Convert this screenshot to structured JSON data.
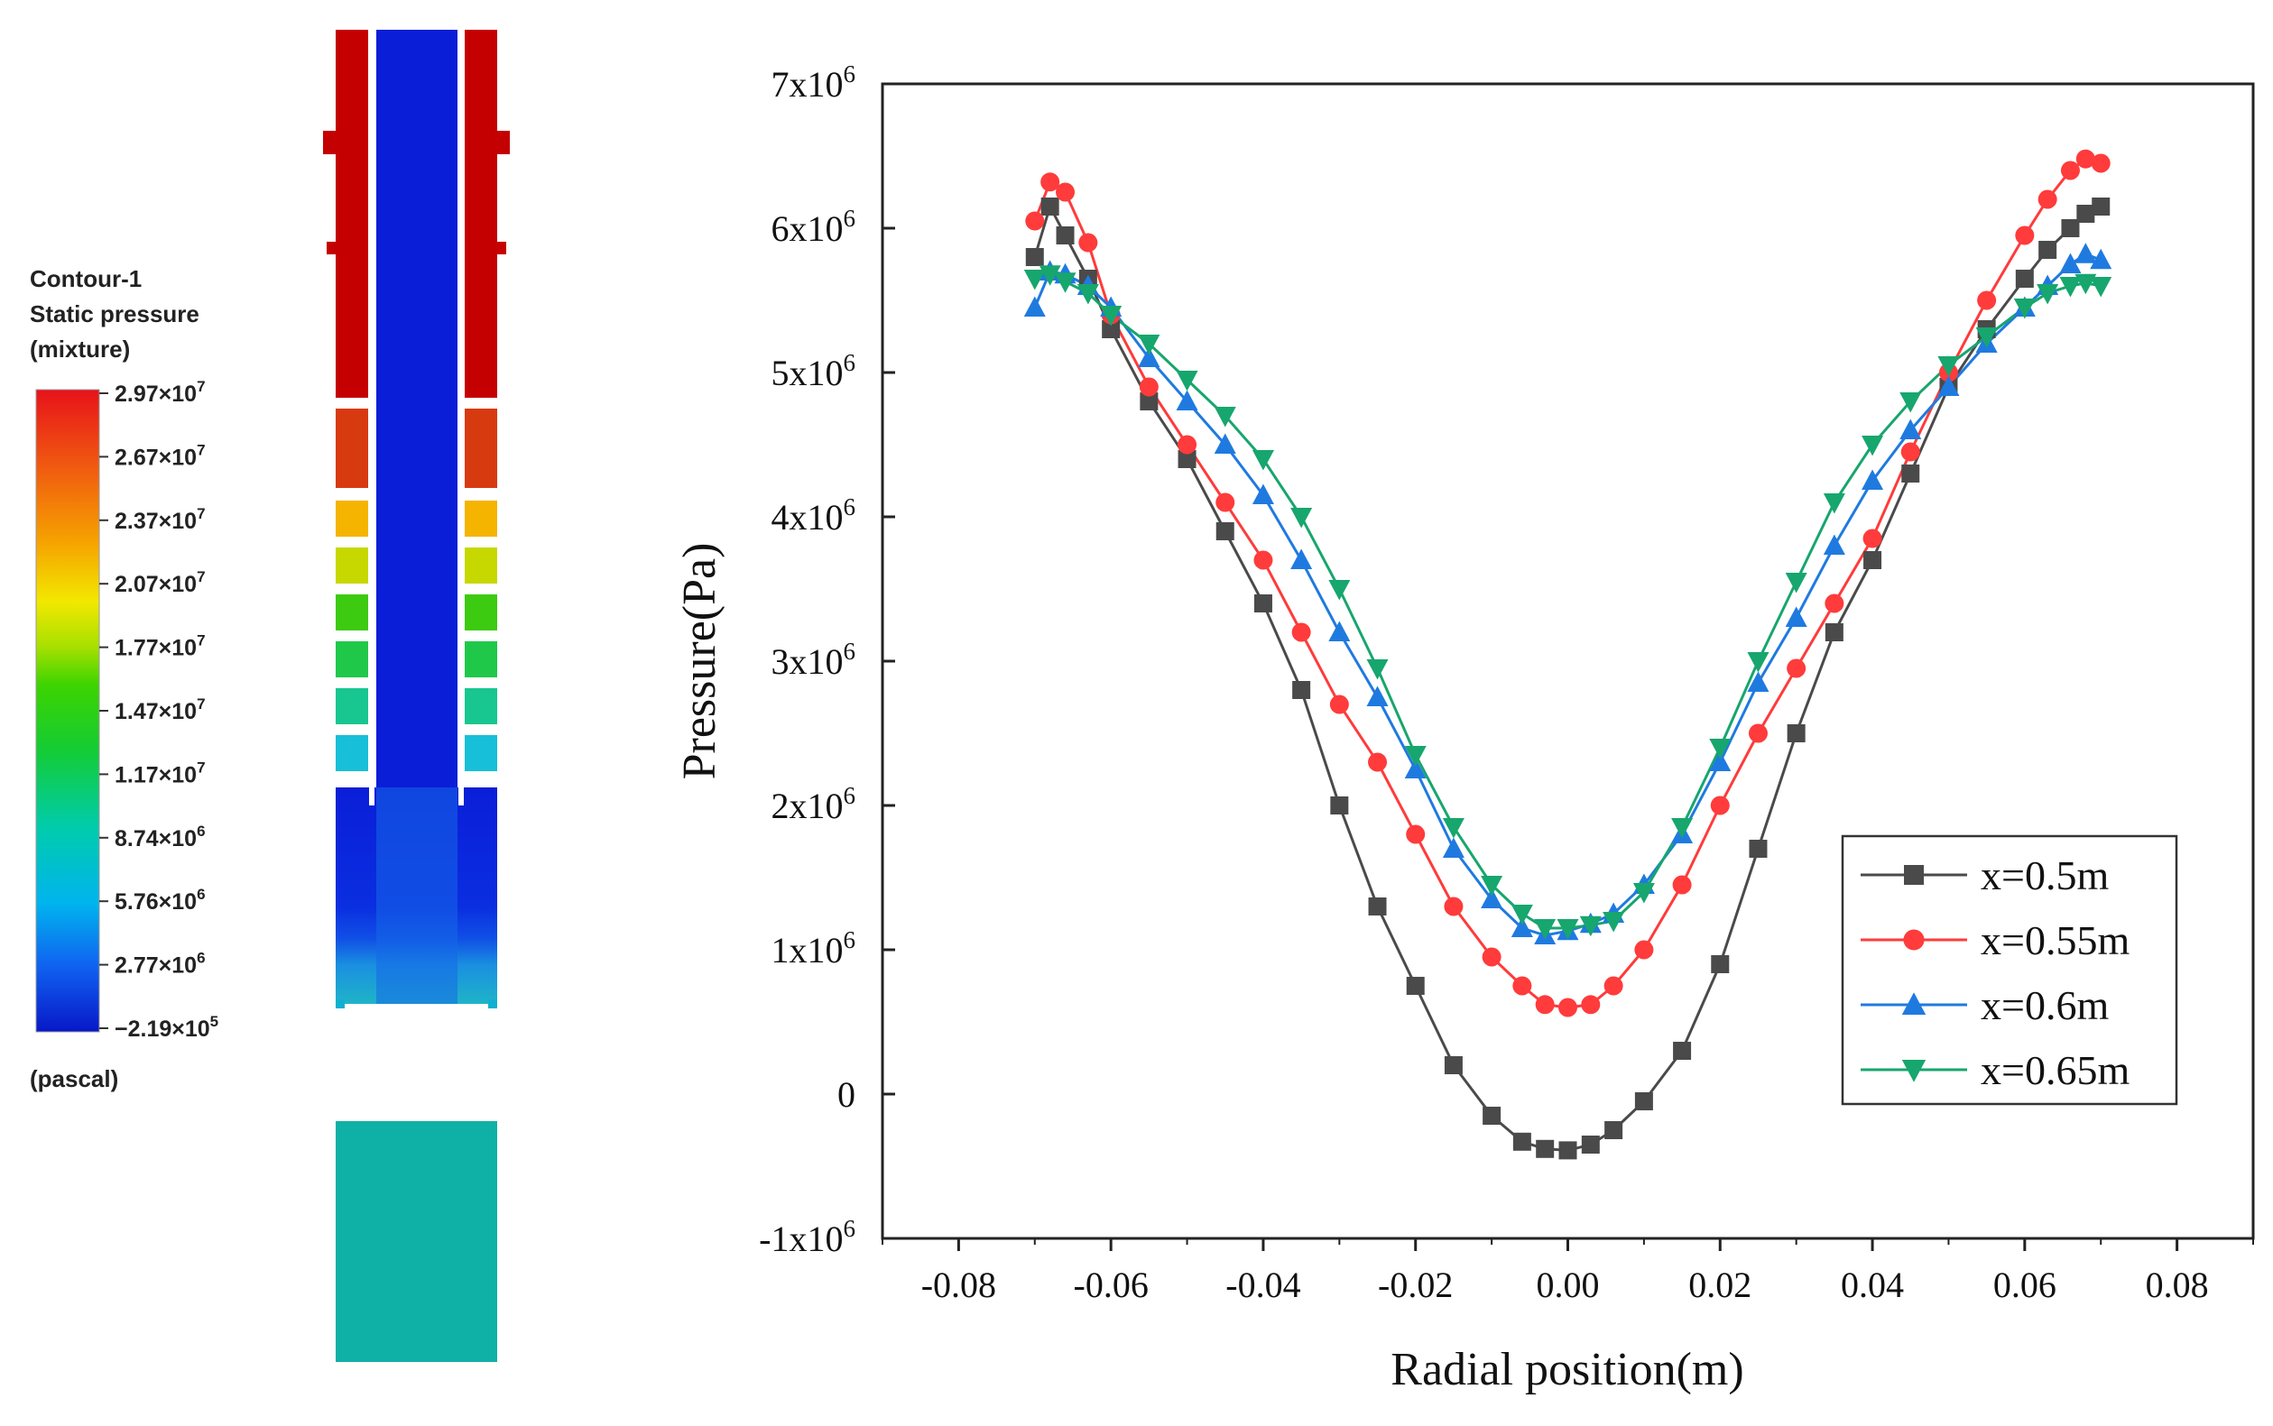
{
  "colors": {
    "x05": "#4a4a4a",
    "x055": "#ff3b3b",
    "x06": "#1f7ae0",
    "x065": "#17a66e",
    "contour_red": "#c00000",
    "contour_blue": "#0b1fd8",
    "contour_teal": "#0fb0a6"
  },
  "colormap": {
    "title_line1": "Contour-1",
    "title_line2": "Static pressure",
    "title_line3": "(mixture)",
    "unit": "(pascal)",
    "ticks": [
      {
        "mantissa": "2.97×10",
        "exp": "7"
      },
      {
        "mantissa": "2.67×10",
        "exp": "7"
      },
      {
        "mantissa": "2.37×10",
        "exp": "7"
      },
      {
        "mantissa": "2.07×10",
        "exp": "7"
      },
      {
        "mantissa": "1.77×10",
        "exp": "7"
      },
      {
        "mantissa": "1.47×10",
        "exp": "7"
      },
      {
        "mantissa": "1.17×10",
        "exp": "7"
      },
      {
        "mantissa": "8.74×10",
        "exp": "6"
      },
      {
        "mantissa": "5.76×10",
        "exp": "6"
      },
      {
        "mantissa": "2.77×10",
        "exp": "6"
      },
      {
        "mantissa": "−2.19×10",
        "exp": "5"
      }
    ]
  },
  "chart_data": {
    "type": "line",
    "title": "",
    "xlabel": "Radial position(m)",
    "ylabel": "Pressure(Pa)",
    "xlim": [
      -0.09,
      0.09
    ],
    "ylim": [
      -1000000,
      7000000
    ],
    "xticks": [
      -0.08,
      -0.06,
      -0.04,
      -0.02,
      0.0,
      0.02,
      0.04,
      0.06,
      0.08
    ],
    "xtick_labels": [
      "-0.08",
      "-0.06",
      "-0.04",
      "-0.02",
      "0.00",
      "0.02",
      "0.04",
      "0.06",
      "0.08"
    ],
    "yticks": [
      {
        "value": -1000000,
        "mantissa": "-1x10",
        "exp": "6"
      },
      {
        "value": 0,
        "mantissa": "0",
        "exp": ""
      },
      {
        "value": 1000000,
        "mantissa": "1x10",
        "exp": "6"
      },
      {
        "value": 2000000,
        "mantissa": "2x10",
        "exp": "6"
      },
      {
        "value": 3000000,
        "mantissa": "3x10",
        "exp": "6"
      },
      {
        "value": 4000000,
        "mantissa": "4x10",
        "exp": "6"
      },
      {
        "value": 5000000,
        "mantissa": "5x10",
        "exp": "6"
      },
      {
        "value": 6000000,
        "mantissa": "6x10",
        "exp": "6"
      },
      {
        "value": 7000000,
        "mantissa": "7x10",
        "exp": "6"
      }
    ],
    "legend_position": "lower-right",
    "series": [
      {
        "name": "x=0.5m",
        "marker": "square",
        "color": "#4a4a4a",
        "x": [
          -0.07,
          -0.068,
          -0.066,
          -0.063,
          -0.06,
          -0.055,
          -0.05,
          -0.045,
          -0.04,
          -0.035,
          -0.03,
          -0.025,
          -0.02,
          -0.015,
          -0.01,
          -0.006,
          -0.003,
          0.0,
          0.003,
          0.006,
          0.01,
          0.015,
          0.02,
          0.025,
          0.03,
          0.035,
          0.04,
          0.045,
          0.05,
          0.055,
          0.06,
          0.063,
          0.066,
          0.068,
          0.07
        ],
        "y": [
          5800000,
          6150000,
          5950000,
          5650000,
          5300000,
          4800000,
          4400000,
          3900000,
          3400000,
          2800000,
          2000000,
          1300000,
          750000,
          200000,
          -150000,
          -330000,
          -380000,
          -390000,
          -350000,
          -250000,
          -50000,
          300000,
          900000,
          1700000,
          2500000,
          3200000,
          3700000,
          4300000,
          4900000,
          5300000,
          5650000,
          5850000,
          6000000,
          6100000,
          6150000
        ]
      },
      {
        "name": "x=0.55m",
        "marker": "circle",
        "color": "#ff3b3b",
        "x": [
          -0.07,
          -0.068,
          -0.066,
          -0.063,
          -0.06,
          -0.055,
          -0.05,
          -0.045,
          -0.04,
          -0.035,
          -0.03,
          -0.025,
          -0.02,
          -0.015,
          -0.01,
          -0.006,
          -0.003,
          0.0,
          0.003,
          0.006,
          0.01,
          0.015,
          0.02,
          0.025,
          0.03,
          0.035,
          0.04,
          0.045,
          0.05,
          0.055,
          0.06,
          0.063,
          0.066,
          0.068,
          0.07
        ],
        "y": [
          6050000,
          6320000,
          6250000,
          5900000,
          5400000,
          4900000,
          4500000,
          4100000,
          3700000,
          3200000,
          2700000,
          2300000,
          1800000,
          1300000,
          950000,
          750000,
          620000,
          600000,
          620000,
          750000,
          1000000,
          1450000,
          2000000,
          2500000,
          2950000,
          3400000,
          3850000,
          4450000,
          5000000,
          5500000,
          5950000,
          6200000,
          6400000,
          6480000,
          6450000
        ]
      },
      {
        "name": "x=0.6m",
        "marker": "triangle",
        "color": "#1f7ae0",
        "x": [
          -0.07,
          -0.068,
          -0.066,
          -0.063,
          -0.06,
          -0.055,
          -0.05,
          -0.045,
          -0.04,
          -0.035,
          -0.03,
          -0.025,
          -0.02,
          -0.015,
          -0.01,
          -0.006,
          -0.003,
          0.0,
          0.003,
          0.006,
          0.01,
          0.015,
          0.02,
          0.025,
          0.03,
          0.035,
          0.04,
          0.045,
          0.05,
          0.055,
          0.06,
          0.063,
          0.066,
          0.068,
          0.07
        ],
        "y": [
          5450000,
          5700000,
          5680000,
          5600000,
          5450000,
          5100000,
          4800000,
          4500000,
          4150000,
          3700000,
          3200000,
          2750000,
          2250000,
          1700000,
          1350000,
          1150000,
          1100000,
          1130000,
          1180000,
          1250000,
          1450000,
          1800000,
          2300000,
          2850000,
          3300000,
          3800000,
          4250000,
          4600000,
          4900000,
          5200000,
          5450000,
          5600000,
          5750000,
          5820000,
          5780000
        ]
      },
      {
        "name": "x=0.65m",
        "marker": "triangle-down",
        "color": "#17a66e",
        "x": [
          -0.07,
          -0.068,
          -0.066,
          -0.063,
          -0.06,
          -0.055,
          -0.05,
          -0.045,
          -0.04,
          -0.035,
          -0.03,
          -0.025,
          -0.02,
          -0.015,
          -0.01,
          -0.006,
          -0.003,
          0.0,
          0.003,
          0.006,
          0.01,
          0.015,
          0.02,
          0.025,
          0.03,
          0.035,
          0.04,
          0.045,
          0.05,
          0.055,
          0.06,
          0.063,
          0.066,
          0.068,
          0.07
        ],
        "y": [
          5650000,
          5680000,
          5630000,
          5550000,
          5400000,
          5200000,
          4950000,
          4700000,
          4400000,
          4000000,
          3500000,
          2950000,
          2350000,
          1850000,
          1450000,
          1250000,
          1150000,
          1150000,
          1170000,
          1200000,
          1400000,
          1850000,
          2400000,
          3000000,
          3550000,
          4100000,
          4500000,
          4800000,
          5050000,
          5250000,
          5450000,
          5550000,
          5600000,
          5620000,
          5600000
        ]
      }
    ]
  }
}
